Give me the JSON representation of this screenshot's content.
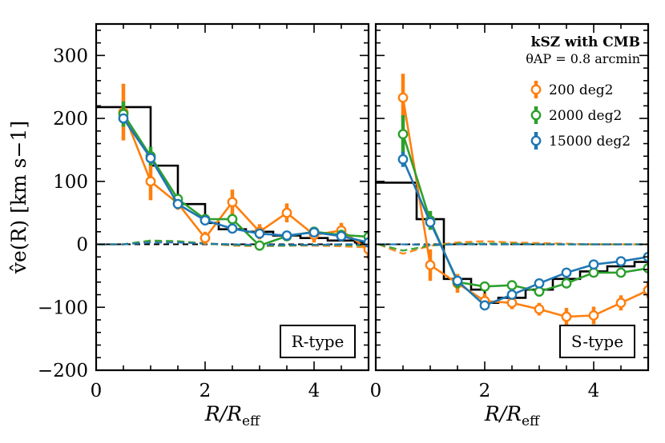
{
  "chart_data": [
    {
      "type": "line",
      "panel_label": "R-type",
      "xlabel": "R/R_eff",
      "ylabel": "v̂e(R) [km s−1]",
      "xlim": [
        0,
        5
      ],
      "ylim": [
        -200,
        350
      ],
      "xticks": [
        "0",
        "2",
        "4"
      ],
      "yticks": [
        "300",
        "200",
        "100",
        "0",
        "−100",
        "−200"
      ],
      "step_profile": {
        "edges": [
          0,
          0.75,
          1.0,
          1.25,
          1.5,
          1.75,
          2.0,
          2.25,
          2.75,
          3.25,
          3.75,
          4.25,
          4.75,
          5.0
        ],
        "values": [
          218,
          218,
          125,
          125,
          64,
          64,
          34,
          24,
          20,
          14,
          10,
          6,
          3
        ]
      },
      "series": [
        {
          "name": "200 deg2",
          "color": "#ff7f0e",
          "x": [
            0.5,
            1.0,
            1.5,
            2.0,
            2.5,
            3.0,
            3.5,
            4.0,
            4.5,
            5.0
          ],
          "values": [
            210,
            100,
            65,
            10,
            67,
            20,
            50,
            15,
            22,
            -8
          ],
          "errors": [
            45,
            30,
            10,
            10,
            20,
            12,
            15,
            12,
            12,
            15
          ],
          "model": [
            0,
            5,
            4,
            2,
            -2,
            -3,
            -2,
            -2,
            -3,
            -5
          ]
        },
        {
          "name": "2000 deg2",
          "color": "#2ca02c",
          "x": [
            0.5,
            1.0,
            1.5,
            2.0,
            2.5,
            3.0,
            3.5,
            4.0,
            4.5,
            5.0
          ],
          "values": [
            207,
            140,
            72,
            40,
            40,
            -2,
            13,
            20,
            15,
            12
          ],
          "errors": [
            20,
            15,
            8,
            8,
            8,
            8,
            8,
            8,
            8,
            10
          ],
          "model": [
            0,
            6,
            5,
            1,
            -1,
            -2,
            -2,
            -1,
            -1,
            -2
          ]
        },
        {
          "name": "15000 deg2",
          "color": "#1f77b4",
          "x": [
            0.5,
            1.0,
            1.5,
            2.0,
            2.5,
            3.0,
            3.5,
            4.0,
            4.5,
            5.0
          ],
          "values": [
            200,
            137,
            64,
            38,
            25,
            17,
            14,
            19,
            13,
            3
          ],
          "errors": [
            6,
            5,
            4,
            3,
            3,
            3,
            3,
            3,
            3,
            3
          ],
          "model": [
            0,
            3,
            3,
            1,
            0,
            -1,
            -1,
            -1,
            0,
            0
          ]
        }
      ]
    },
    {
      "type": "line",
      "panel_label": "S-type",
      "xlabel": "R/R_eff",
      "xlim": [
        0,
        5
      ],
      "ylim": [
        -200,
        350
      ],
      "xticks": [
        "0",
        "2",
        "4"
      ],
      "step_profile": {
        "edges": [
          0,
          0.5,
          0.75,
          1.0,
          1.25,
          1.5,
          1.75,
          2.0,
          2.25,
          2.75,
          3.25,
          3.75,
          4.25,
          4.75,
          5.0
        ],
        "values": [
          98,
          98,
          40,
          40,
          -55,
          -55,
          -72,
          -93,
          -85,
          -72,
          -55,
          -43,
          -35,
          -28
        ]
      },
      "series": [
        {
          "name": "200 deg2",
          "color": "#ff7f0e",
          "x": [
            0.5,
            1.0,
            1.5,
            2.0,
            2.5,
            3.0,
            3.5,
            4.0,
            4.5,
            5.0
          ],
          "values": [
            233,
            -33,
            -62,
            -90,
            -93,
            -103,
            -115,
            -113,
            -93,
            -73
          ],
          "errors": [
            38,
            25,
            15,
            12,
            10,
            10,
            14,
            14,
            12,
            12
          ],
          "model": [
            -15,
            -2,
            3,
            5,
            3,
            2,
            1,
            0,
            0,
            0
          ]
        },
        {
          "name": "2000 deg2",
          "color": "#2ca02c",
          "x": [
            0.5,
            1.0,
            1.5,
            2.0,
            2.5,
            3.0,
            3.5,
            4.0,
            4.5,
            5.0
          ],
          "values": [
            175,
            38,
            -60,
            -67,
            -65,
            -75,
            -62,
            -45,
            -45,
            -38
          ],
          "errors": [
            30,
            15,
            10,
            8,
            8,
            8,
            8,
            6,
            6,
            6
          ],
          "model": [
            -10,
            -2,
            1,
            1,
            1,
            0,
            0,
            0,
            0,
            0
          ]
        },
        {
          "name": "15000 deg2",
          "color": "#1f77b4",
          "x": [
            0.5,
            1.0,
            1.5,
            2.0,
            2.5,
            3.0,
            3.5,
            4.0,
            4.5,
            5.0
          ],
          "values": [
            135,
            35,
            -58,
            -97,
            -80,
            -62,
            -45,
            -32,
            -27,
            -20
          ],
          "errors": [
            12,
            6,
            4,
            3,
            3,
            3,
            3,
            3,
            3,
            3
          ],
          "model": [
            0,
            -1,
            0,
            0,
            0,
            0,
            0,
            0,
            0,
            0
          ]
        }
      ]
    }
  ],
  "legend": {
    "title": "kSZ with CMB",
    "subtitle": "θAP = 0.8 arcmin",
    "entries": [
      "200 deg2",
      "2000 deg2",
      "15000 deg2"
    ]
  }
}
